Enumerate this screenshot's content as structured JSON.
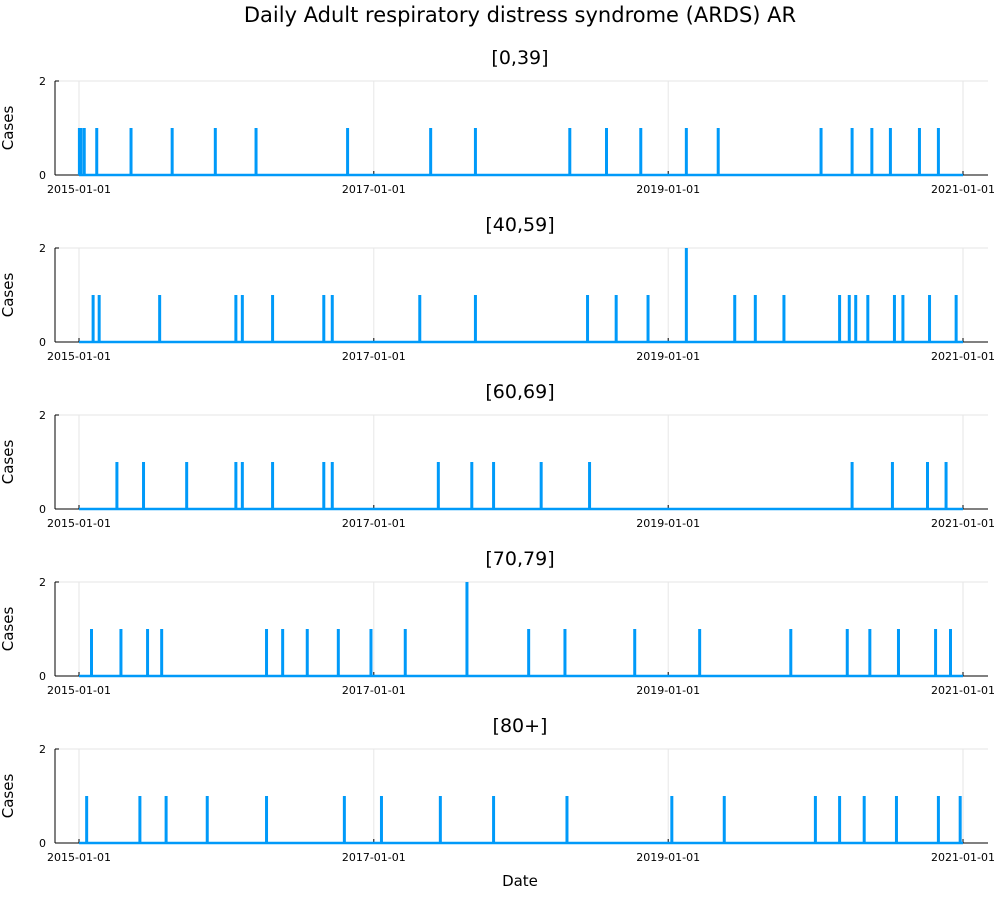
{
  "chart_data": {
    "type": "line",
    "title": "Daily Adult respiratory distress syndrome (ARDS) AR",
    "xlabel": "Date",
    "ylabel": "Cases",
    "x_range": [
      "2015-01-01",
      "2021-01-01"
    ],
    "x_ticks": [
      "2015-01-01",
      "2017-01-01",
      "2019-01-01",
      "2021-01-01"
    ],
    "ylim": [
      0,
      2
    ],
    "y_ticks": [
      0,
      2
    ],
    "grid": true,
    "line_color": "#009af9",
    "panels": [
      {
        "name": "[0,39]",
        "events": [
          {
            "date": "2015-01-02",
            "value": 1
          },
          {
            "date": "2015-01-06",
            "value": 1
          },
          {
            "date": "2015-01-14",
            "value": 1
          },
          {
            "date": "2015-02-14",
            "value": 1
          },
          {
            "date": "2015-05-10",
            "value": 1
          },
          {
            "date": "2015-08-20",
            "value": 1
          },
          {
            "date": "2015-12-05",
            "value": 1
          },
          {
            "date": "2016-03-15",
            "value": 1
          },
          {
            "date": "2016-10-28",
            "value": 1
          },
          {
            "date": "2017-05-22",
            "value": 1
          },
          {
            "date": "2017-09-10",
            "value": 1
          },
          {
            "date": "2018-05-02",
            "value": 1
          },
          {
            "date": "2018-08-01",
            "value": 1
          },
          {
            "date": "2018-10-25",
            "value": 1
          },
          {
            "date": "2019-02-15",
            "value": 1
          },
          {
            "date": "2019-05-05",
            "value": 1
          },
          {
            "date": "2020-01-15",
            "value": 1
          },
          {
            "date": "2020-04-01",
            "value": 1
          },
          {
            "date": "2020-05-20",
            "value": 1
          },
          {
            "date": "2020-07-05",
            "value": 1
          },
          {
            "date": "2020-09-15",
            "value": 1
          },
          {
            "date": "2020-11-01",
            "value": 1
          }
        ]
      },
      {
        "name": "[40,59]",
        "events": [
          {
            "date": "2015-02-05",
            "value": 1
          },
          {
            "date": "2015-02-20",
            "value": 1
          },
          {
            "date": "2015-07-20",
            "value": 1
          },
          {
            "date": "2016-01-25",
            "value": 1
          },
          {
            "date": "2016-02-10",
            "value": 1
          },
          {
            "date": "2016-04-25",
            "value": 1
          },
          {
            "date": "2016-08-30",
            "value": 1
          },
          {
            "date": "2016-09-20",
            "value": 1
          },
          {
            "date": "2017-04-25",
            "value": 1
          },
          {
            "date": "2017-09-10",
            "value": 1
          },
          {
            "date": "2018-06-15",
            "value": 1
          },
          {
            "date": "2018-08-25",
            "value": 1
          },
          {
            "date": "2018-11-12",
            "value": 1
          },
          {
            "date": "2019-02-15",
            "value": 2
          },
          {
            "date": "2019-06-15",
            "value": 1
          },
          {
            "date": "2019-08-05",
            "value": 1
          },
          {
            "date": "2019-10-15",
            "value": 1
          },
          {
            "date": "2020-03-01",
            "value": 1
          },
          {
            "date": "2020-03-25",
            "value": 1
          },
          {
            "date": "2020-04-10",
            "value": 1
          },
          {
            "date": "2020-05-10",
            "value": 1
          },
          {
            "date": "2020-07-15",
            "value": 1
          },
          {
            "date": "2020-08-05",
            "value": 1
          },
          {
            "date": "2020-10-10",
            "value": 1
          },
          {
            "date": "2020-12-15",
            "value": 1
          }
        ]
      },
      {
        "name": "[60,69]",
        "events": [
          {
            "date": "2015-04-05",
            "value": 1
          },
          {
            "date": "2015-06-10",
            "value": 1
          },
          {
            "date": "2015-09-25",
            "value": 1
          },
          {
            "date": "2016-01-25",
            "value": 1
          },
          {
            "date": "2016-02-10",
            "value": 1
          },
          {
            "date": "2016-04-25",
            "value": 1
          },
          {
            "date": "2016-08-30",
            "value": 1
          },
          {
            "date": "2016-09-20",
            "value": 1
          },
          {
            "date": "2017-06-10",
            "value": 1
          },
          {
            "date": "2017-09-01",
            "value": 1
          },
          {
            "date": "2017-10-25",
            "value": 1
          },
          {
            "date": "2018-02-20",
            "value": 1
          },
          {
            "date": "2018-06-20",
            "value": 1
          },
          {
            "date": "2020-04-01",
            "value": 1
          },
          {
            "date": "2020-07-10",
            "value": 1
          },
          {
            "date": "2020-10-05",
            "value": 1
          },
          {
            "date": "2020-11-20",
            "value": 1
          }
        ]
      },
      {
        "name": "[70,79]",
        "events": [
          {
            "date": "2015-02-01",
            "value": 1
          },
          {
            "date": "2015-04-15",
            "value": 1
          },
          {
            "date": "2015-06-20",
            "value": 1
          },
          {
            "date": "2015-07-25",
            "value": 1
          },
          {
            "date": "2016-04-10",
            "value": 1
          },
          {
            "date": "2016-05-20",
            "value": 1
          },
          {
            "date": "2016-07-20",
            "value": 1
          },
          {
            "date": "2016-10-05",
            "value": 1
          },
          {
            "date": "2016-12-25",
            "value": 1
          },
          {
            "date": "2017-03-20",
            "value": 1
          },
          {
            "date": "2017-08-20",
            "value": 2
          },
          {
            "date": "2018-01-20",
            "value": 1
          },
          {
            "date": "2018-04-20",
            "value": 1
          },
          {
            "date": "2018-10-10",
            "value": 1
          },
          {
            "date": "2019-03-20",
            "value": 1
          },
          {
            "date": "2019-11-01",
            "value": 1
          },
          {
            "date": "2020-03-20",
            "value": 1
          },
          {
            "date": "2020-05-15",
            "value": 1
          },
          {
            "date": "2020-07-25",
            "value": 1
          },
          {
            "date": "2020-10-25",
            "value": 1
          },
          {
            "date": "2020-12-01",
            "value": 1
          }
        ]
      },
      {
        "name": "[80+]",
        "events": [
          {
            "date": "2015-01-20",
            "value": 1
          },
          {
            "date": "2015-06-01",
            "value": 1
          },
          {
            "date": "2015-08-05",
            "value": 1
          },
          {
            "date": "2015-11-15",
            "value": 1
          },
          {
            "date": "2016-04-10",
            "value": 1
          },
          {
            "date": "2016-10-20",
            "value": 1
          },
          {
            "date": "2017-01-20",
            "value": 1
          },
          {
            "date": "2017-06-15",
            "value": 1
          },
          {
            "date": "2017-10-25",
            "value": 1
          },
          {
            "date": "2018-04-25",
            "value": 1
          },
          {
            "date": "2019-01-10",
            "value": 1
          },
          {
            "date": "2019-05-20",
            "value": 1
          },
          {
            "date": "2020-01-01",
            "value": 1
          },
          {
            "date": "2020-03-01",
            "value": 1
          },
          {
            "date": "2020-05-01",
            "value": 1
          },
          {
            "date": "2020-07-20",
            "value": 1
          },
          {
            "date": "2020-11-01",
            "value": 1
          },
          {
            "date": "2020-12-25",
            "value": 1
          }
        ]
      }
    ]
  }
}
